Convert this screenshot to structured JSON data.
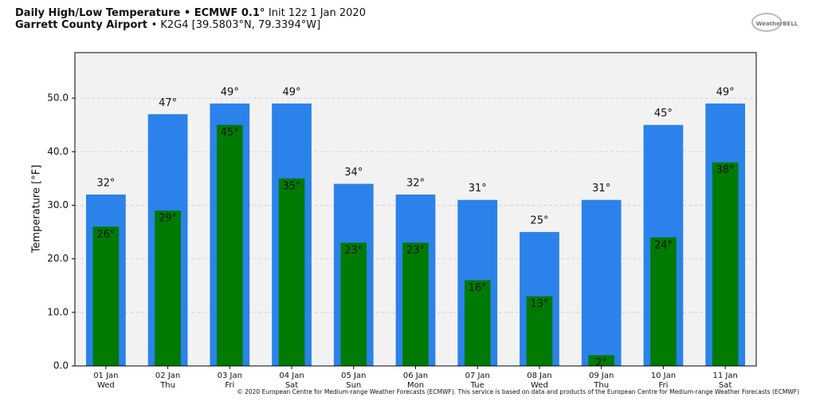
{
  "chart_data": {
    "type": "bar",
    "title": "Daily High/Low Temperature • ECMWF 0.1°",
    "init": "Init 12z 1 Jan 2020",
    "location": "Garrett County Airport",
    "station": "• K2G4 [39.5803°N, 79.3394°W]",
    "logo": "WeatherBELL",
    "ylabel": "Temperature [°F]",
    "credit": "© 2020 European Centre for Medium-range Weather Forecasts (ECMWF). This service is based on data and products of the European Centre for Medium-range Weather Forecasts (ECMWF)",
    "categories": [
      "01 Jan",
      "02 Jan",
      "03 Jan",
      "04 Jan",
      "05 Jan",
      "06 Jan",
      "07 Jan",
      "08 Jan",
      "09 Jan",
      "10 Jan",
      "11 Jan"
    ],
    "days": [
      "Wed",
      "Thu",
      "Fri",
      "Sat",
      "Sun",
      "Mon",
      "Tue",
      "Wed",
      "Thu",
      "Fri",
      "Sat"
    ],
    "series": [
      {
        "name": "High",
        "color": "#2b82ea",
        "values": [
          32,
          47,
          49,
          49,
          34,
          32,
          31,
          25,
          31,
          45,
          49
        ],
        "value_labels": [
          "32°",
          "47°",
          "49°",
          "49°",
          "34°",
          "32°",
          "31°",
          "25°",
          "31°",
          "45°",
          "49°"
        ]
      },
      {
        "name": "Low",
        "color": "#007a00",
        "values": [
          26,
          29,
          45,
          35,
          23,
          23,
          16,
          13,
          2,
          24,
          38
        ],
        "value_labels": [
          "26°",
          "29°",
          "45°",
          "35°",
          "23°",
          "23°",
          "16°",
          "13°",
          "2°",
          "24°",
          "38°"
        ]
      }
    ],
    "ylim": [
      0,
      58.5
    ],
    "yticks": [
      {
        "value": 0,
        "label": "0.0"
      },
      {
        "value": 10,
        "label": "10.0"
      },
      {
        "value": 20,
        "label": "20.0"
      },
      {
        "value": 30,
        "label": "30.0"
      },
      {
        "value": 40,
        "label": "40.0"
      },
      {
        "value": 50,
        "label": "50.0"
      }
    ],
    "grid": true
  }
}
